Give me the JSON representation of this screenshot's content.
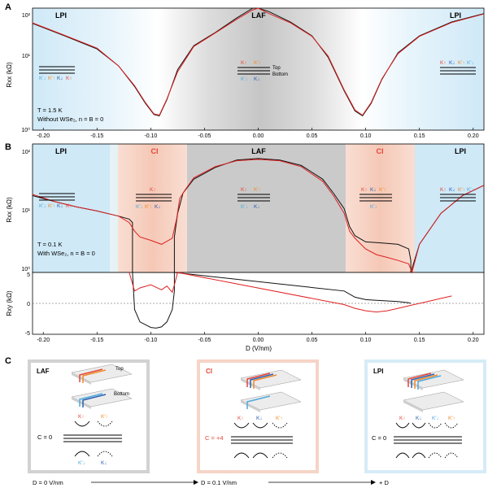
{
  "panels": {
    "A": {
      "label": "A",
      "regions": {
        "lpi_left": "LPI",
        "laf": "LAF",
        "lpi_right": "LPI"
      },
      "annotation_lines": [
        "T = 1.5 K",
        "Without WSe₂, n = B = 0"
      ],
      "layer_labels": {
        "top": "Top",
        "bottom": "Bottom"
      },
      "y_axis_label": "Rxx (kΩ)",
      "y_ticks": [
        "10²",
        "10¹",
        "10⁰"
      ],
      "x_ticks": [
        "-0.20",
        "-0.15",
        "-0.10",
        "-0.05",
        "0.00",
        "0.05",
        "0.10",
        "0.15",
        "0.20"
      ]
    },
    "B": {
      "label": "B",
      "regions": {
        "lpi_left": "LPI",
        "ci_left": "CI",
        "laf": "LAF",
        "ci_right": "CI",
        "lpi_right": "LPI"
      },
      "annotation_lines": [
        "T = 0.1 K",
        "With WSe₂, n = B = 0"
      ],
      "y_axis_label_top": "Rxx (kΩ)",
      "y_axis_label_bottom": "Rxy (kΩ)",
      "y_ticks_top": [
        "10²",
        "10¹",
        "10⁰"
      ],
      "y_ticks_bottom": [
        "5",
        "0",
        "-5"
      ],
      "x_axis_label": "D (V/nm)",
      "x_ticks": [
        "-0.20",
        "-0.15",
        "-0.10",
        "-0.05",
        "0.00",
        "0.05",
        "0.10",
        "0.15",
        "0.20"
      ]
    },
    "C": {
      "label": "C",
      "states": [
        {
          "title": "LAF",
          "layer_top": "Top",
          "layer_bottom": "Bottom",
          "chern": "C = 0",
          "valleys_top": [
            "K↑",
            "K′↑"
          ],
          "valleys_bottom": [
            "K′↓",
            "K↓"
          ]
        },
        {
          "title": "CI",
          "chern": "C = +4",
          "valleys": [
            "K↑",
            "K↓",
            "K′↑"
          ]
        },
        {
          "title": "LPI",
          "chern": "C = 0",
          "valleys": [
            "K↑",
            "K↓",
            "K′↓",
            "K′↑"
          ]
        }
      ],
      "d_axis": [
        "D = 0 V/nm",
        "D = 0.1 V/nm",
        "+ D"
      ]
    }
  },
  "valley_labels": {
    "k_up": "K↑",
    "k_down": "K↓",
    "kp_up": "K′↑",
    "kp_down": "K′↓"
  },
  "colors": {
    "k_up": "#e4473a",
    "k_down": "#2a5fb0",
    "kp_up": "#f08a2a",
    "kp_down": "#4fa9dc",
    "red_trace": "#e02020",
    "black_trace": "#111111",
    "lpi_bg": "#cfe9f7",
    "ci_bg": "#f6cdbf",
    "laf_bg": "#c8c8c8"
  },
  "chart_data": [
    {
      "type": "line",
      "title": "",
      "xlabel": "",
      "ylabel": "Rxx (kΩ)",
      "xlim": [
        -0.21,
        0.21
      ],
      "ylim": [
        1,
        150
      ],
      "yscale": "log",
      "series": [
        {
          "color": "#111111",
          "x": [
            -0.21,
            -0.18,
            -0.15,
            -0.13,
            -0.115,
            -0.105,
            -0.097,
            -0.092,
            -0.085,
            -0.075,
            -0.06,
            -0.04,
            -0.02,
            -0.005,
            0.0,
            0.01,
            0.03,
            0.05,
            0.065,
            0.08,
            0.09,
            0.097,
            0.105,
            0.115,
            0.13,
            0.15,
            0.18,
            0.21
          ],
          "y": [
            80,
            48,
            28,
            14,
            6,
            3,
            1.9,
            1.8,
            3.5,
            12,
            32,
            55,
            100,
            150,
            170,
            130,
            85,
            48,
            20,
            5,
            2.2,
            1.8,
            3,
            8,
            24,
            48,
            85,
            120
          ]
        },
        {
          "color": "#e02020",
          "x": [
            -0.21,
            -0.18,
            -0.15,
            -0.13,
            -0.115,
            -0.105,
            -0.097,
            -0.092,
            -0.085,
            -0.075,
            -0.06,
            -0.04,
            -0.02,
            -0.005,
            0.0,
            0.01,
            0.03,
            0.05,
            0.065,
            0.08,
            0.09,
            0.097,
            0.105,
            0.115,
            0.13,
            0.15,
            0.18,
            0.21
          ],
          "y": [
            82,
            49,
            29,
            14,
            6.2,
            3.1,
            1.95,
            1.85,
            3.6,
            11,
            31,
            54,
            95,
            140,
            150,
            120,
            82,
            47,
            21,
            5.2,
            2.3,
            1.85,
            3.1,
            8.2,
            23,
            47,
            83,
            118
          ]
        }
      ]
    },
    {
      "type": "line",
      "title": "",
      "xlabel": "",
      "ylabel": "Rxx (kΩ)",
      "xlim": [
        -0.21,
        0.21
      ],
      "ylim": [
        1,
        150
      ],
      "yscale": "log",
      "series": [
        {
          "color": "#111111",
          "x": [
            -0.21,
            -0.19,
            -0.17,
            -0.15,
            -0.13,
            -0.12,
            -0.117,
            -0.117,
            -0.078,
            -0.078,
            -0.075,
            -0.07,
            -0.06,
            -0.04,
            -0.02,
            0.0,
            0.02,
            0.04,
            0.06,
            0.07,
            0.08,
            0.085,
            0.09,
            0.1,
            0.11,
            0.12,
            0.13,
            0.14,
            0.142,
            0.142,
            0.15,
            0.17,
            0.19,
            0.21
          ],
          "y": [
            20,
            16,
            13,
            11,
            9,
            8,
            7,
            1,
            1,
            4,
            10,
            22,
            38,
            60,
            80,
            85,
            80,
            65,
            38,
            22,
            12,
            6,
            4.2,
            3.3,
            3.2,
            3.1,
            3,
            2.5,
            1.6,
            1,
            3,
            10,
            20,
            30
          ]
        },
        {
          "color": "#e02020",
          "x": [
            -0.21,
            -0.19,
            -0.17,
            -0.15,
            -0.13,
            -0.12,
            -0.115,
            -0.11,
            -0.1,
            -0.09,
            -0.08,
            -0.076,
            -0.073,
            -0.068,
            -0.06,
            -0.04,
            -0.02,
            0.0,
            0.02,
            0.04,
            0.06,
            0.07,
            0.08,
            0.085,
            0.09,
            0.1,
            0.11,
            0.12,
            0.13,
            0.14,
            0.143,
            0.15,
            0.17,
            0.19,
            0.21
          ],
          "y": [
            21,
            16,
            13,
            11,
            9,
            7,
            5,
            4,
            3.5,
            3,
            3.8,
            8,
            18,
            25,
            40,
            62,
            78,
            82,
            78,
            62,
            35,
            20,
            10,
            5,
            3.8,
            2.5,
            2,
            1.8,
            1.6,
            1.4,
            1,
            3,
            10,
            20,
            30
          ]
        }
      ]
    },
    {
      "type": "line",
      "title": "",
      "xlabel": "D (V/nm)",
      "ylabel": "Rxy (kΩ)",
      "xlim": [
        -0.21,
        0.21
      ],
      "ylim": [
        -5,
        5
      ],
      "series": [
        {
          "color": "#111111",
          "x": [
            -0.117,
            -0.115,
            -0.11,
            -0.1,
            -0.095,
            -0.09,
            -0.085,
            -0.08,
            -0.078,
            -0.078,
            0.08,
            0.09,
            0.1,
            0.11,
            0.12,
            0.13,
            0.14,
            0.142
          ],
          "y": [
            5,
            -1,
            -3,
            -3.9,
            -4,
            -3.8,
            -3,
            -1,
            2,
            5,
            2,
            1,
            0.6,
            0.5,
            0.4,
            0.3,
            0.1,
            0
          ]
        },
        {
          "color": "#e02020",
          "x": [
            -0.12,
            -0.115,
            -0.11,
            -0.1,
            -0.09,
            -0.085,
            -0.08,
            -0.078,
            -0.075,
            0.08,
            0.09,
            0.1,
            0.11,
            0.12,
            0.13,
            0.14,
            0.15,
            0.16,
            0.17,
            0.18
          ],
          "y": [
            5,
            2,
            2.5,
            3,
            2.2,
            2.8,
            1.8,
            3,
            5,
            -0.2,
            -0.8,
            -1.2,
            -1.4,
            -1.2,
            -0.8,
            -0.4,
            0,
            0.4,
            0.8,
            1.2
          ]
        }
      ]
    }
  ]
}
